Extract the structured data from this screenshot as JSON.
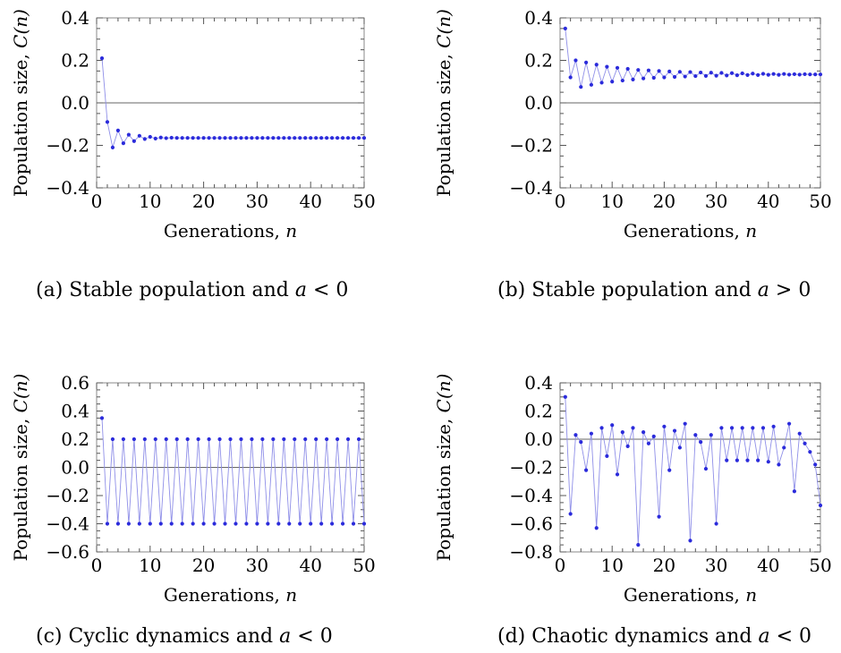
{
  "chart_data": [
    {
      "type": "line",
      "marker": "dot",
      "caption": "(a) Stable population and a < 0",
      "caption_parts": {
        "label": "(a)",
        "text": "Stable population and",
        "var": "a",
        "rel": "< 0"
      },
      "xlabel": "Generations, n",
      "xlabel_parts": {
        "text": "Generations,",
        "var": "n"
      },
      "ylabel": "Population size, C(n)",
      "ylabel_parts": {
        "text": "Population size,",
        "var": "C(n)"
      },
      "xlim": [
        0,
        50
      ],
      "ylim": [
        -0.4,
        0.4
      ],
      "xticks": [
        "0",
        "10",
        "20",
        "30",
        "40",
        "50"
      ],
      "yticks": [
        "0.4",
        "0.2",
        "0.0",
        "−0.2",
        "−0.4"
      ],
      "ytick_values": [
        0.4,
        0.2,
        0.0,
        -0.2,
        -0.4
      ],
      "reference_line": 0,
      "color": "#2b2bdb",
      "series": [
        {
          "x": [
            1,
            2,
            3,
            4,
            5,
            6,
            7,
            8,
            9,
            10,
            11,
            12,
            13,
            14,
            15,
            16,
            17,
            18,
            19,
            20,
            21,
            22,
            23,
            24,
            25,
            26,
            27,
            28,
            29,
            30,
            31,
            32,
            33,
            34,
            35,
            36,
            37,
            38,
            39,
            40,
            41,
            42,
            43,
            44,
            45,
            46,
            47,
            48,
            49,
            50
          ],
          "values": [
            0.21,
            -0.09,
            -0.21,
            -0.13,
            -0.19,
            -0.15,
            -0.18,
            -0.155,
            -0.17,
            -0.16,
            -0.168,
            -0.163,
            -0.166,
            -0.164,
            -0.165,
            -0.165,
            -0.165,
            -0.165,
            -0.165,
            -0.165,
            -0.165,
            -0.165,
            -0.165,
            -0.165,
            -0.165,
            -0.165,
            -0.165,
            -0.165,
            -0.165,
            -0.165,
            -0.165,
            -0.165,
            -0.165,
            -0.165,
            -0.165,
            -0.165,
            -0.165,
            -0.165,
            -0.165,
            -0.165,
            -0.165,
            -0.165,
            -0.165,
            -0.165,
            -0.165,
            -0.165,
            -0.165,
            -0.165,
            -0.165,
            -0.165
          ]
        }
      ]
    },
    {
      "type": "line",
      "marker": "dot",
      "caption": "(b) Stable population and a > 0",
      "caption_parts": {
        "label": "(b)",
        "text": "Stable population and",
        "var": "a",
        "rel": "> 0"
      },
      "xlabel": "Generations, n",
      "xlabel_parts": {
        "text": "Generations,",
        "var": "n"
      },
      "ylabel": "Population size, C(n)",
      "ylabel_parts": {
        "text": "Population size,",
        "var": "C(n)"
      },
      "xlim": [
        0,
        50
      ],
      "ylim": [
        -0.4,
        0.4
      ],
      "xticks": [
        "0",
        "10",
        "20",
        "30",
        "40",
        "50"
      ],
      "yticks": [
        "0.4",
        "0.2",
        "0.0",
        "−0.2",
        "−0.4"
      ],
      "ytick_values": [
        0.4,
        0.2,
        0.0,
        -0.2,
        -0.4
      ],
      "reference_line": 0,
      "color": "#2b2bdb",
      "series": [
        {
          "x": [
            1,
            2,
            3,
            4,
            5,
            6,
            7,
            8,
            9,
            10,
            11,
            12,
            13,
            14,
            15,
            16,
            17,
            18,
            19,
            20,
            21,
            22,
            23,
            24,
            25,
            26,
            27,
            28,
            29,
            30,
            31,
            32,
            33,
            34,
            35,
            36,
            37,
            38,
            39,
            40,
            41,
            42,
            43,
            44,
            45,
            46,
            47,
            48,
            49,
            50
          ],
          "values": [
            0.35,
            0.12,
            0.2,
            0.075,
            0.19,
            0.085,
            0.18,
            0.095,
            0.17,
            0.1,
            0.165,
            0.105,
            0.16,
            0.11,
            0.155,
            0.115,
            0.153,
            0.118,
            0.15,
            0.12,
            0.148,
            0.122,
            0.146,
            0.124,
            0.145,
            0.126,
            0.143,
            0.127,
            0.142,
            0.128,
            0.141,
            0.129,
            0.14,
            0.13,
            0.139,
            0.131,
            0.138,
            0.131,
            0.137,
            0.132,
            0.136,
            0.132,
            0.136,
            0.133,
            0.135,
            0.133,
            0.135,
            0.134,
            0.134,
            0.134
          ]
        }
      ]
    },
    {
      "type": "line",
      "marker": "dot",
      "caption": "(c) Cyclic dynamics and a < 0",
      "caption_parts": {
        "label": "(c)",
        "text": "Cyclic dynamics and",
        "var": "a",
        "rel": "< 0"
      },
      "xlabel": "Generations, n",
      "xlabel_parts": {
        "text": "Generations,",
        "var": "n"
      },
      "ylabel": "Population size, C(n)",
      "ylabel_parts": {
        "text": "Population size,",
        "var": "C(n)"
      },
      "xlim": [
        0,
        50
      ],
      "ylim": [
        -0.6,
        0.6
      ],
      "xticks": [
        "0",
        "10",
        "20",
        "30",
        "40",
        "50"
      ],
      "yticks": [
        "0.6",
        "0.4",
        "0.2",
        "0.0",
        "−0.2",
        "−0.4",
        "−0.6"
      ],
      "ytick_values": [
        0.6,
        0.4,
        0.2,
        0.0,
        -0.2,
        -0.4,
        -0.6
      ],
      "reference_line": 0,
      "color": "#2b2bdb",
      "series": [
        {
          "x": [
            1,
            2,
            3,
            4,
            5,
            6,
            7,
            8,
            9,
            10,
            11,
            12,
            13,
            14,
            15,
            16,
            17,
            18,
            19,
            20,
            21,
            22,
            23,
            24,
            25,
            26,
            27,
            28,
            29,
            30,
            31,
            32,
            33,
            34,
            35,
            36,
            37,
            38,
            39,
            40,
            41,
            42,
            43,
            44,
            45,
            46,
            47,
            48,
            49,
            50
          ],
          "values": [
            0.35,
            -0.4,
            0.2,
            -0.4,
            0.2,
            -0.4,
            0.2,
            -0.4,
            0.2,
            -0.4,
            0.2,
            -0.4,
            0.2,
            -0.4,
            0.2,
            -0.4,
            0.2,
            -0.4,
            0.2,
            -0.4,
            0.2,
            -0.4,
            0.2,
            -0.4,
            0.2,
            -0.4,
            0.2,
            -0.4,
            0.2,
            -0.4,
            0.2,
            -0.4,
            0.2,
            -0.4,
            0.2,
            -0.4,
            0.2,
            -0.4,
            0.2,
            -0.4,
            0.2,
            -0.4,
            0.2,
            -0.4,
            0.2,
            -0.4,
            0.2,
            -0.4,
            0.2,
            -0.4
          ]
        }
      ]
    },
    {
      "type": "line",
      "marker": "dot",
      "caption": "(d) Chaotic dynamics and a < 0",
      "caption_parts": {
        "label": "(d)",
        "text": "Chaotic dynamics and",
        "var": "a",
        "rel": "< 0"
      },
      "xlabel": "Generations, n",
      "xlabel_parts": {
        "text": "Generations,",
        "var": "n"
      },
      "ylabel": "Population size, C(n)",
      "ylabel_parts": {
        "text": "Population size,",
        "var": "C(n)"
      },
      "xlim": [
        0,
        50
      ],
      "ylim": [
        -0.8,
        0.4
      ],
      "xticks": [
        "0",
        "10",
        "20",
        "30",
        "40",
        "50"
      ],
      "yticks": [
        "0.4",
        "0.2",
        "0.0",
        "−0.2",
        "−0.4",
        "−0.6",
        "−0.8"
      ],
      "ytick_values": [
        0.4,
        0.2,
        0.0,
        -0.2,
        -0.4,
        -0.6,
        -0.8
      ],
      "reference_line": 0,
      "color": "#2b2bdb",
      "series": [
        {
          "x": [
            1,
            2,
            3,
            4,
            5,
            6,
            7,
            8,
            9,
            10,
            11,
            12,
            13,
            14,
            15,
            16,
            17,
            18,
            19,
            20,
            21,
            22,
            23,
            24,
            25,
            26,
            27,
            28,
            29,
            30,
            31,
            32,
            33,
            34,
            35,
            36,
            37,
            38,
            39,
            40,
            41,
            42,
            43,
            44,
            45,
            46,
            47,
            48,
            49,
            50
          ],
          "values": [
            0.3,
            -0.53,
            0.03,
            -0.02,
            -0.22,
            0.04,
            -0.63,
            0.08,
            -0.12,
            0.1,
            -0.25,
            0.05,
            -0.05,
            0.08,
            -0.75,
            0.05,
            -0.03,
            0.02,
            -0.55,
            0.09,
            -0.22,
            0.06,
            -0.06,
            0.11,
            -0.72,
            0.03,
            -0.02,
            -0.21,
            0.03,
            -0.6,
            0.08,
            -0.15,
            0.08,
            -0.15,
            0.08,
            -0.15,
            0.08,
            -0.15,
            0.08,
            -0.16,
            0.09,
            -0.18,
            -0.06,
            0.11,
            -0.37,
            0.04,
            -0.03,
            -0.09,
            -0.18,
            -0.47
          ]
        }
      ]
    }
  ]
}
